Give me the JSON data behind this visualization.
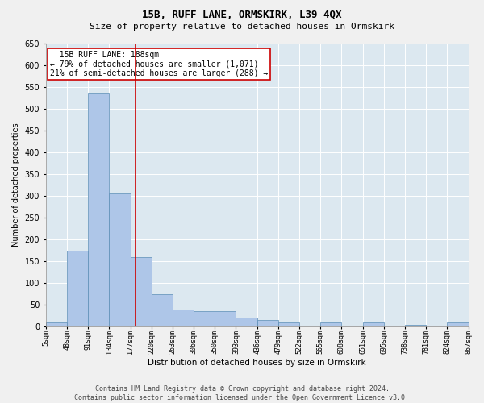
{
  "title": "15B, RUFF LANE, ORMSKIRK, L39 4QX",
  "subtitle": "Size of property relative to detached houses in Ormskirk",
  "xlabel": "Distribution of detached houses by size in Ormskirk",
  "ylabel": "Number of detached properties",
  "footer_line1": "Contains HM Land Registry data © Crown copyright and database right 2024.",
  "footer_line2": "Contains public sector information licensed under the Open Government Licence v3.0.",
  "annotation_line1": "  15B RUFF LANE: 188sqm  ",
  "annotation_line2": "← 79% of detached houses are smaller (1,071)",
  "annotation_line3": "21% of semi-detached houses are larger (288) →",
  "bar_values": [
    10,
    175,
    535,
    305,
    160,
    75,
    40,
    35,
    35,
    20,
    15,
    10,
    0,
    10,
    0,
    10,
    0,
    5,
    0,
    10
  ],
  "bin_labels": [
    "5sqm",
    "48sqm",
    "91sqm",
    "134sqm",
    "177sqm",
    "220sqm",
    "263sqm",
    "306sqm",
    "350sqm",
    "393sqm",
    "436sqm",
    "479sqm",
    "522sqm",
    "565sqm",
    "608sqm",
    "651sqm",
    "695sqm",
    "738sqm",
    "781sqm",
    "824sqm",
    "867sqm"
  ],
  "bar_color": "#aec6e8",
  "bar_edge_color": "#5a8db5",
  "bg_color": "#dce8f0",
  "grid_color": "#ffffff",
  "vline_color": "#cc0000",
  "annotation_box_color": "#cc0000",
  "fig_bg_color": "#f0f0f0",
  "ylim": [
    0,
    650
  ],
  "yticks": [
    0,
    50,
    100,
    150,
    200,
    250,
    300,
    350,
    400,
    450,
    500,
    550,
    600,
    650
  ],
  "title_fontsize": 9,
  "subtitle_fontsize": 8,
  "xlabel_fontsize": 7.5,
  "ylabel_fontsize": 7,
  "xtick_fontsize": 6,
  "ytick_fontsize": 7,
  "annotation_fontsize": 7,
  "footer_fontsize": 6
}
